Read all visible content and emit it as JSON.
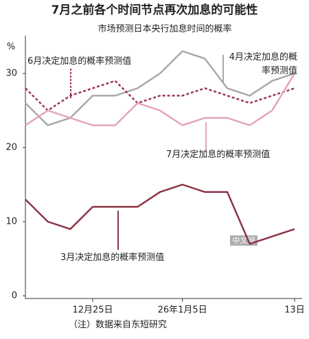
{
  "chart_data": {
    "type": "line",
    "title": "7月之前各个时间节点再次加息的可能性",
    "subtitle": "市场预测日本央行加息时间的概率",
    "y_unit": "%",
    "note": "（注）数据来自东短研究",
    "watermark": "中文网",
    "categories": [
      null,
      null,
      null,
      "12月25日",
      null,
      null,
      null,
      "26年1月5日",
      null,
      null,
      null,
      null,
      "13日"
    ],
    "ylim": [
      0,
      35
    ],
    "yticks": [
      0,
      10,
      20,
      30
    ],
    "series": [
      {
        "name": "3月决定加息的概率预测值",
        "color": "#8b3445",
        "dashed": false,
        "values": [
          13,
          10,
          9,
          12,
          12,
          12,
          14,
          15,
          14,
          14,
          7,
          8,
          9
        ]
      },
      {
        "name": "4月决定加息的概率预测值",
        "color": "#a9a9a9",
        "dashed": false,
        "values": [
          26,
          23,
          24,
          27,
          27,
          28,
          30,
          33,
          32,
          28,
          27,
          29,
          30
        ]
      },
      {
        "name": "6月决定加息的概率预测值",
        "color": "#9a3556",
        "dashed": true,
        "values": [
          28,
          25,
          27,
          28,
          29,
          26,
          27,
          27,
          28,
          27,
          26,
          27,
          28
        ]
      },
      {
        "name": "7月决定加息的概率预测值",
        "color": "#e4a5b6",
        "dashed": false,
        "values": [
          23,
          25,
          24,
          23,
          23,
          26,
          25,
          23,
          24,
          24,
          23,
          25,
          30
        ]
      }
    ]
  }
}
